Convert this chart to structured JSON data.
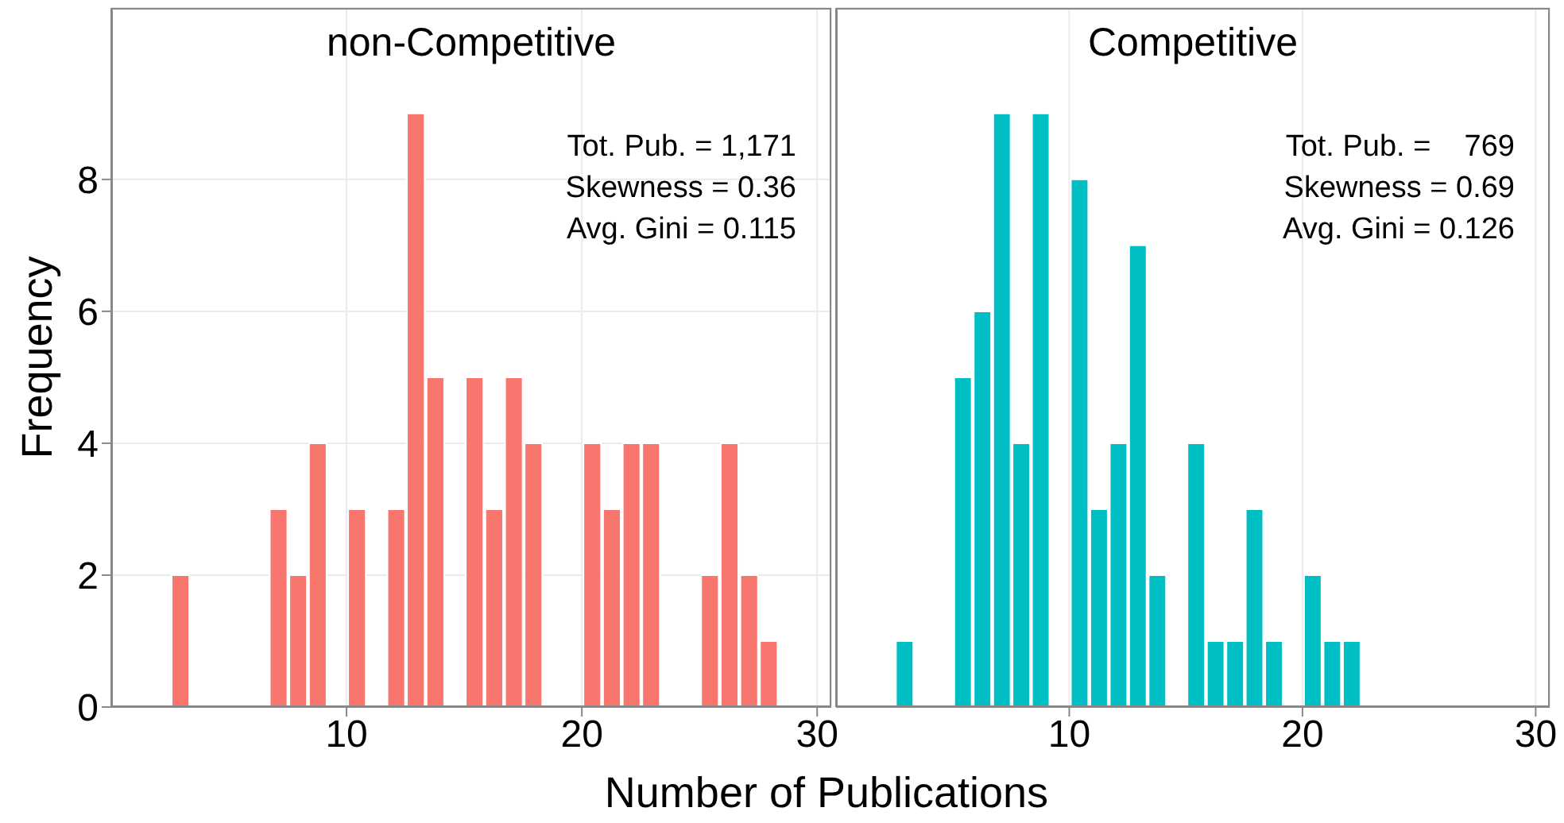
{
  "chart_data": [
    {
      "type": "histogram",
      "title": "non-Competitive",
      "xlabel": "Number of Publications",
      "ylabel": "Frequency",
      "color": "#f8766d",
      "bins": [
        2.5,
        3.33,
        4.17,
        5,
        5.83,
        6.67,
        7.5,
        8.33,
        9.17,
        10,
        10.83,
        11.67,
        12.5,
        13.33,
        14.17,
        15,
        15.83,
        16.67,
        17.5,
        18.33,
        19.17,
        20,
        20.83,
        21.67,
        22.5,
        23.33,
        24.17,
        25,
        25.83,
        26.67,
        27.5,
        28.33
      ],
      "values": [
        2,
        0,
        0,
        0,
        0,
        3,
        2,
        4,
        0,
        3,
        0,
        3,
        9,
        5,
        0,
        5,
        3,
        5,
        4,
        0,
        0,
        4,
        3,
        4,
        4,
        0,
        0,
        2,
        4,
        2,
        1
      ],
      "xlim": [
        0,
        30.6
      ],
      "xticks": [
        10,
        20,
        30
      ],
      "ylim": [
        0,
        10.6
      ],
      "yticks": [
        0,
        2,
        4,
        6,
        8
      ],
      "grid": true,
      "annotations": [
        "Tot. Pub. = 1,171",
        "Skewness = 0.36",
        "Avg. Gini = 0.115"
      ]
    },
    {
      "type": "histogram",
      "title": "Competitive",
      "color": "#00bfc4",
      "bins": [
        2.5,
        3.33,
        4.17,
        5,
        5.83,
        6.67,
        7.5,
        8.33,
        9.17,
        10,
        10.83,
        11.67,
        12.5,
        13.33,
        14.17,
        15,
        15.83,
        16.67,
        17.5,
        18.33,
        19.17,
        20,
        20.83,
        21.67,
        22.5
      ],
      "values": [
        1,
        0,
        0,
        5,
        6,
        9,
        4,
        9,
        0,
        8,
        3,
        4,
        7,
        2,
        0,
        4,
        1,
        1,
        3,
        1,
        0,
        2,
        1,
        1
      ],
      "xlim": [
        0,
        30.6
      ],
      "xticks": [
        10,
        20,
        30
      ],
      "ylim": [
        0,
        10.6
      ],
      "yticks": [
        0,
        2,
        4,
        6,
        8
      ],
      "grid": true,
      "tick_labels": "x",
      "annotations": [
        "Tot. Pub. =    769",
        "Skewness = 0.69",
        "Avg. Gini = 0.126"
      ]
    }
  ]
}
